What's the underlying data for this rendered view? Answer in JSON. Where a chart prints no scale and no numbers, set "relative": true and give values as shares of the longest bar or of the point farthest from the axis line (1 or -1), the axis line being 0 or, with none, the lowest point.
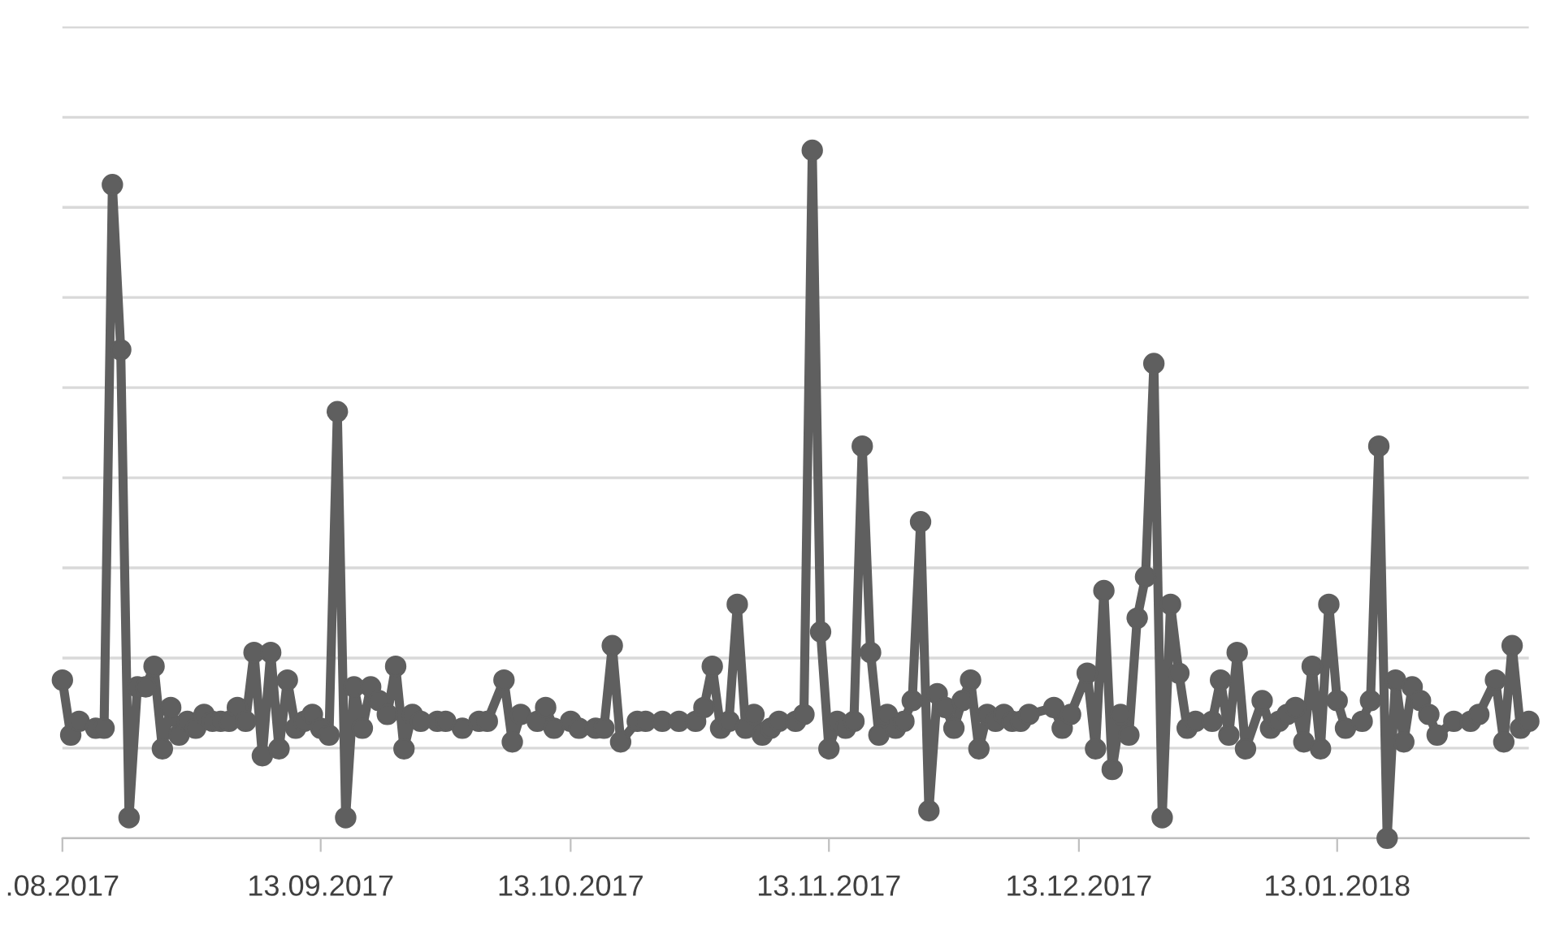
{
  "chart_data": {
    "type": "line",
    "relative": true,
    "grid": "y",
    "marker": "circle",
    "line_style": "solid",
    "xlim": [
      "2017-08-13",
      "2018-02-05"
    ],
    "xticks": [
      {
        "value": "2017-08-13",
        "label": ".08.2017"
      },
      {
        "value": "2017-09-13",
        "label": "13.09.2017"
      },
      {
        "value": "2017-10-13",
        "label": "13.10.2017"
      },
      {
        "value": "2017-11-13",
        "label": "13.11.2017"
      },
      {
        "value": "2017-12-13",
        "label": "13.12.2017"
      },
      {
        "value": "2018-01-13",
        "label": "13.01.2018"
      }
    ],
    "series": [
      {
        "color": "#5f5f5f",
        "x": [
          "2017-08-13",
          "2017-08-14",
          "2017-08-15",
          "2017-08-17",
          "2017-08-18",
          "2017-08-19",
          "2017-08-20",
          "2017-08-21",
          "2017-08-22",
          "2017-08-23",
          "2017-08-24",
          "2017-08-25",
          "2017-08-26",
          "2017-08-27",
          "2017-08-28",
          "2017-08-29",
          "2017-08-30",
          "2017-08-31",
          "2017-09-01",
          "2017-09-02",
          "2017-09-03",
          "2017-09-04",
          "2017-09-05",
          "2017-09-06",
          "2017-09-07",
          "2017-09-08",
          "2017-09-09",
          "2017-09-10",
          "2017-09-11",
          "2017-09-12",
          "2017-09-13",
          "2017-09-14",
          "2017-09-15",
          "2017-09-16",
          "2017-09-17",
          "2017-09-18",
          "2017-09-19",
          "2017-09-20",
          "2017-09-21",
          "2017-09-22",
          "2017-09-23",
          "2017-09-24",
          "2017-09-25",
          "2017-09-27",
          "2017-09-28",
          "2017-09-30",
          "2017-10-02",
          "2017-10-03",
          "2017-10-05",
          "2017-10-06",
          "2017-10-07",
          "2017-10-09",
          "2017-10-10",
          "2017-10-11",
          "2017-10-13",
          "2017-10-14",
          "2017-10-16",
          "2017-10-17",
          "2017-10-18",
          "2017-10-19",
          "2017-10-21",
          "2017-10-22",
          "2017-10-24",
          "2017-10-26",
          "2017-10-28",
          "2017-10-29",
          "2017-10-30",
          "2017-10-31",
          "2017-11-01",
          "2017-11-02",
          "2017-11-03",
          "2017-11-04",
          "2017-11-05",
          "2017-11-06",
          "2017-11-07",
          "2017-11-09",
          "2017-11-10",
          "2017-11-11",
          "2017-11-12",
          "2017-11-13",
          "2017-11-14",
          "2017-11-15",
          "2017-11-16",
          "2017-11-17",
          "2017-11-18",
          "2017-11-19",
          "2017-11-20",
          "2017-11-21",
          "2017-11-22",
          "2017-11-23",
          "2017-11-24",
          "2017-11-25",
          "2017-11-26",
          "2017-11-27",
          "2017-11-28",
          "2017-11-29",
          "2017-11-30",
          "2017-12-01",
          "2017-12-02",
          "2017-12-03",
          "2017-12-04",
          "2017-12-05",
          "2017-12-06",
          "2017-12-07",
          "2017-12-10",
          "2017-12-11",
          "2017-12-12",
          "2017-12-14",
          "2017-12-15",
          "2017-12-16",
          "2017-12-17",
          "2017-12-18",
          "2017-12-19",
          "2017-12-20",
          "2017-12-21",
          "2017-12-22",
          "2017-12-23",
          "2017-12-24",
          "2017-12-25",
          "2017-12-26",
          "2017-12-27",
          "2017-12-29",
          "2017-12-30",
          "2017-12-31",
          "2018-01-01",
          "2018-01-02",
          "2018-01-04",
          "2018-01-05",
          "2018-01-06",
          "2018-01-07",
          "2018-01-08",
          "2018-01-09",
          "2018-01-10",
          "2018-01-11",
          "2018-01-12",
          "2018-01-13",
          "2018-01-14",
          "2018-01-16",
          "2018-01-17",
          "2018-01-18",
          "2018-01-19",
          "2018-01-20",
          "2018-01-21",
          "2018-01-22",
          "2018-01-23",
          "2018-01-24",
          "2018-01-25",
          "2018-01-27",
          "2018-01-29",
          "2018-01-30",
          "2018-02-01",
          "2018-02-02",
          "2018-02-03",
          "2018-02-04",
          "2018-02-05"
        ],
        "values": [
          0.23,
          0.15,
          0.17,
          0.16,
          0.16,
          0.95,
          0.71,
          0.03,
          0.22,
          0.22,
          0.25,
          0.13,
          0.19,
          0.15,
          0.17,
          0.16,
          0.18,
          0.17,
          0.17,
          0.17,
          0.19,
          0.17,
          0.27,
          0.12,
          0.27,
          0.13,
          0.23,
          0.16,
          0.17,
          0.18,
          0.16,
          0.15,
          0.62,
          0.03,
          0.22,
          0.16,
          0.22,
          0.2,
          0.18,
          0.25,
          0.13,
          0.18,
          0.17,
          0.17,
          0.17,
          0.16,
          0.17,
          0.17,
          0.23,
          0.14,
          0.18,
          0.17,
          0.19,
          0.16,
          0.17,
          0.16,
          0.16,
          0.16,
          0.28,
          0.14,
          0.17,
          0.17,
          0.17,
          0.17,
          0.17,
          0.19,
          0.25,
          0.16,
          0.17,
          0.34,
          0.16,
          0.18,
          0.15,
          0.16,
          0.17,
          0.17,
          0.18,
          1,
          0.3,
          0.13,
          0.17,
          0.16,
          0.17,
          0.57,
          0.27,
          0.15,
          0.18,
          0.16,
          0.17,
          0.2,
          0.46,
          0.04,
          0.21,
          0.19,
          0.16,
          0.2,
          0.23,
          0.13,
          0.18,
          0.17,
          0.18,
          0.17,
          0.17,
          0.18,
          0.19,
          0.16,
          0.18,
          0.24,
          0.13,
          0.36,
          0.1,
          0.18,
          0.15,
          0.32,
          0.38,
          0.69,
          0.03,
          0.34,
          0.24,
          0.16,
          0.17,
          0.17,
          0.23,
          0.15,
          0.27,
          0.13,
          0.2,
          0.16,
          0.17,
          0.18,
          0.19,
          0.14,
          0.25,
          0.13,
          0.34,
          0.2,
          0.16,
          0.17,
          0.2,
          0.57,
          0,
          0.23,
          0.14,
          0.22,
          0.2,
          0.18,
          0.15,
          0.17,
          0.17,
          0.18,
          0.23,
          0.14,
          0.28,
          0.16,
          0.17
        ]
      }
    ]
  }
}
